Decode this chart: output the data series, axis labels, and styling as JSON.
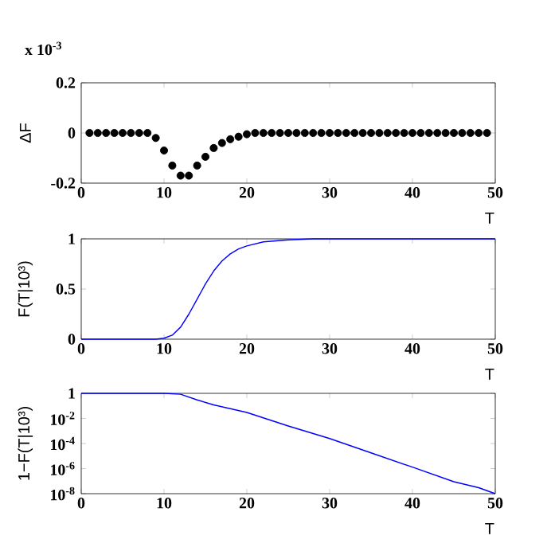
{
  "chart_data": [
    {
      "type": "scatter",
      "ylabel": "ΔF",
      "xlabel": "T",
      "annotations": [
        "x 10$^{-3}$"
      ],
      "marker": "circle",
      "x": [
        1,
        2,
        3,
        4,
        5,
        6,
        7,
        8,
        9,
        10,
        11,
        12,
        13,
        14,
        15,
        16,
        17,
        18,
        19,
        20,
        21,
        22,
        23,
        24,
        25,
        26,
        27,
        28,
        29,
        30,
        31,
        32,
        33,
        34,
        35,
        36,
        37,
        38,
        39,
        40,
        41,
        42,
        43,
        44,
        45,
        46,
        47,
        48,
        49
      ],
      "series": [
        {
          "color": "#000000",
          "values": [
            0,
            0,
            0,
            0,
            0,
            0,
            0,
            0,
            -0.02,
            -0.07,
            -0.13,
            -0.17,
            -0.17,
            -0.13,
            -0.095,
            -0.06,
            -0.04,
            -0.025,
            -0.015,
            -0.005,
            0,
            0,
            0,
            0,
            0,
            0,
            0,
            0,
            0,
            0,
            0,
            0,
            0,
            0,
            0,
            0,
            0,
            0,
            0,
            0,
            0,
            0,
            0,
            0,
            0,
            0,
            0,
            0,
            0
          ]
        }
      ],
      "xlim": [
        0,
        50
      ],
      "xticks": [
        0,
        10,
        20,
        30,
        40,
        50
      ],
      "ylim": [
        -0.2,
        0.2
      ],
      "yticks": [
        -0.2,
        0,
        0.2
      ]
    },
    {
      "type": "line",
      "ylabel": "F(T|10³)",
      "xlabel": "T",
      "x": [
        0,
        5,
        9,
        10,
        11,
        12,
        13,
        14,
        15,
        16,
        17,
        18,
        19,
        20,
        22,
        25,
        28,
        30,
        40,
        50
      ],
      "series": [
        {
          "color": "#0000ff",
          "values": [
            0,
            0,
            0,
            0.01,
            0.04,
            0.12,
            0.25,
            0.4,
            0.55,
            0.68,
            0.78,
            0.85,
            0.9,
            0.93,
            0.97,
            0.99,
            1,
            1,
            1,
            1
          ]
        }
      ],
      "xlim": [
        0,
        50
      ],
      "xticks": [
        0,
        10,
        20,
        30,
        40,
        50
      ],
      "ylim": [
        0,
        1
      ],
      "yticks": [
        0,
        0.5,
        1
      ]
    },
    {
      "type": "line",
      "ylabel": "1−F(T|10³)",
      "xlabel": "T",
      "log": "y",
      "x": [
        0,
        5,
        10,
        12,
        14,
        16,
        18,
        20,
        25,
        30,
        35,
        40,
        45,
        48,
        50
      ],
      "series": [
        {
          "color": "#0000ff",
          "values": [
            1,
            1,
            0.99,
            0.85,
            0.3,
            0.12,
            0.06,
            0.03,
            0.0025,
            0.00025,
            1.8e-05,
            1.3e-06,
            9e-08,
            3e-08,
            1e-08
          ]
        }
      ],
      "xlim": [
        0,
        50
      ],
      "xticks": [
        0,
        10,
        20,
        30,
        40,
        50
      ],
      "ylim": [
        1e-08,
        1
      ],
      "yticks": [
        {
          "value": 1e-08,
          "label": "10$^{-8}$"
        },
        {
          "value": 1e-06,
          "label": "10$^{-6}$"
        },
        {
          "value": 0.0001,
          "label": "10$^{-4}$"
        },
        {
          "value": 0.01,
          "label": "10$^{-2}$"
        },
        1
      ]
    }
  ]
}
